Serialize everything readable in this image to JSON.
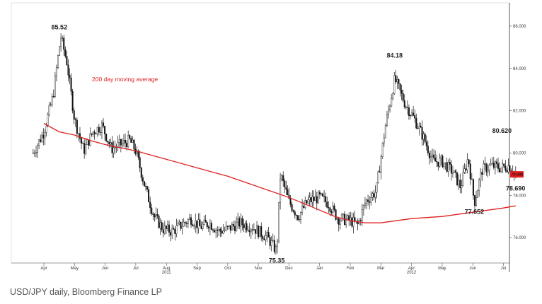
{
  "caption": "USD/JPY daily, Bloomberg Finance LP",
  "chart_data": {
    "type": "candlestick",
    "subject": "USD/JPY daily",
    "ylim": [
      74.8,
      86.8
    ],
    "y_ticks": [
      {
        "value": 86,
        "label": "86.000"
      },
      {
        "value": 84,
        "label": "84.000"
      },
      {
        "value": 82,
        "label": "82.000"
      },
      {
        "value": 80,
        "label": "80.000"
      },
      {
        "value": 78,
        "label": "78.000"
      },
      {
        "value": 76,
        "label": "76.000"
      }
    ],
    "x_months": [
      "Apr",
      "May",
      "Jun",
      "Jul",
      "Aug",
      "Sep",
      "Oct",
      "Nov",
      "Dec",
      "Jan",
      "Feb",
      "Mar",
      "Apr",
      "May",
      "Jun",
      "Jul"
    ],
    "x_years": [
      "2011",
      "2012"
    ],
    "current_price_label": "78.988",
    "series": [
      {
        "name": "200 day moving average",
        "color": "#e02020",
        "points": [
          [
            0,
            81.4
          ],
          [
            0.5,
            81.0
          ],
          [
            1,
            80.85
          ],
          [
            1.5,
            80.6
          ],
          [
            2,
            80.4
          ],
          [
            2.5,
            80.25
          ],
          [
            3,
            80.1
          ],
          [
            3.5,
            79.9
          ],
          [
            4,
            79.7
          ],
          [
            4.5,
            79.5
          ],
          [
            5,
            79.3
          ],
          [
            5.5,
            79.1
          ],
          [
            6,
            78.9
          ],
          [
            6.5,
            78.65
          ],
          [
            7,
            78.4
          ],
          [
            7.5,
            78.15
          ],
          [
            8,
            77.9
          ],
          [
            8.5,
            77.6
          ],
          [
            9,
            77.3
          ],
          [
            9.5,
            77.0
          ],
          [
            10,
            76.8
          ],
          [
            10.5,
            76.7
          ],
          [
            11,
            76.7
          ],
          [
            11.5,
            76.8
          ],
          [
            12,
            76.9
          ],
          [
            12.5,
            76.95
          ],
          [
            13,
            77.0
          ],
          [
            13.5,
            77.1
          ],
          [
            14,
            77.2
          ],
          [
            14.5,
            77.3
          ],
          [
            15,
            77.4
          ],
          [
            15.4,
            77.5
          ]
        ]
      }
    ],
    "annotations": [
      {
        "text": "85.52",
        "x": 0.55,
        "y": 85.52
      },
      {
        "text": "84.18",
        "x": 11.45,
        "y": 84.18
      },
      {
        "text": "80.620",
        "x": 14.95,
        "y": 80.62
      },
      {
        "text": "77.652",
        "x": 14.05,
        "y": 77.65
      },
      {
        "text": "78.690",
        "x": 15.35,
        "y": 78.69
      },
      {
        "text": "75.35",
        "x": 7.6,
        "y": 75.35
      }
    ],
    "price_keypoints": [
      [
        -0.35,
        80.0
      ],
      [
        0.0,
        81.0
      ],
      [
        0.3,
        82.7
      ],
      [
        0.55,
        85.52
      ],
      [
        0.75,
        84.3
      ],
      [
        1.0,
        81.6
      ],
      [
        1.3,
        80.1
      ],
      [
        1.6,
        81.0
      ],
      [
        1.9,
        81.3
      ],
      [
        2.2,
        80.2
      ],
      [
        2.5,
        80.4
      ],
      [
        2.8,
        80.6
      ],
      [
        3.0,
        80.1
      ],
      [
        3.3,
        78.4
      ],
      [
        3.6,
        77.0
      ],
      [
        3.9,
        76.4
      ],
      [
        4.2,
        76.3
      ],
      [
        4.5,
        76.6
      ],
      [
        4.8,
        76.9
      ],
      [
        5.1,
        76.5
      ],
      [
        5.4,
        76.7
      ],
      [
        5.7,
        76.3
      ],
      [
        6.0,
        76.4
      ],
      [
        6.4,
        76.7
      ],
      [
        6.8,
        76.5
      ],
      [
        7.1,
        76.2
      ],
      [
        7.3,
        76.0
      ],
      [
        7.6,
        75.35
      ],
      [
        7.72,
        79.0
      ],
      [
        8.0,
        77.7
      ],
      [
        8.3,
        77.0
      ],
      [
        8.6,
        77.7
      ],
      [
        9.0,
        77.9
      ],
      [
        9.3,
        77.6
      ],
      [
        9.6,
        76.9
      ],
      [
        10.0,
        76.8
      ],
      [
        10.25,
        76.6
      ],
      [
        10.5,
        77.7
      ],
      [
        10.85,
        78.2
      ],
      [
        11.15,
        81.3
      ],
      [
        11.45,
        83.5
      ],
      [
        11.8,
        82.3
      ],
      [
        12.1,
        81.6
      ],
      [
        12.4,
        80.7
      ],
      [
        12.7,
        79.6
      ],
      [
        13.0,
        79.6
      ],
      [
        13.35,
        79.1
      ],
      [
        13.6,
        78.4
      ],
      [
        13.85,
        79.8
      ],
      [
        14.05,
        77.65
      ],
      [
        14.3,
        79.2
      ],
      [
        14.6,
        79.4
      ],
      [
        14.95,
        79.3
      ],
      [
        15.2,
        79.4
      ],
      [
        15.4,
        79.0
      ]
    ]
  }
}
